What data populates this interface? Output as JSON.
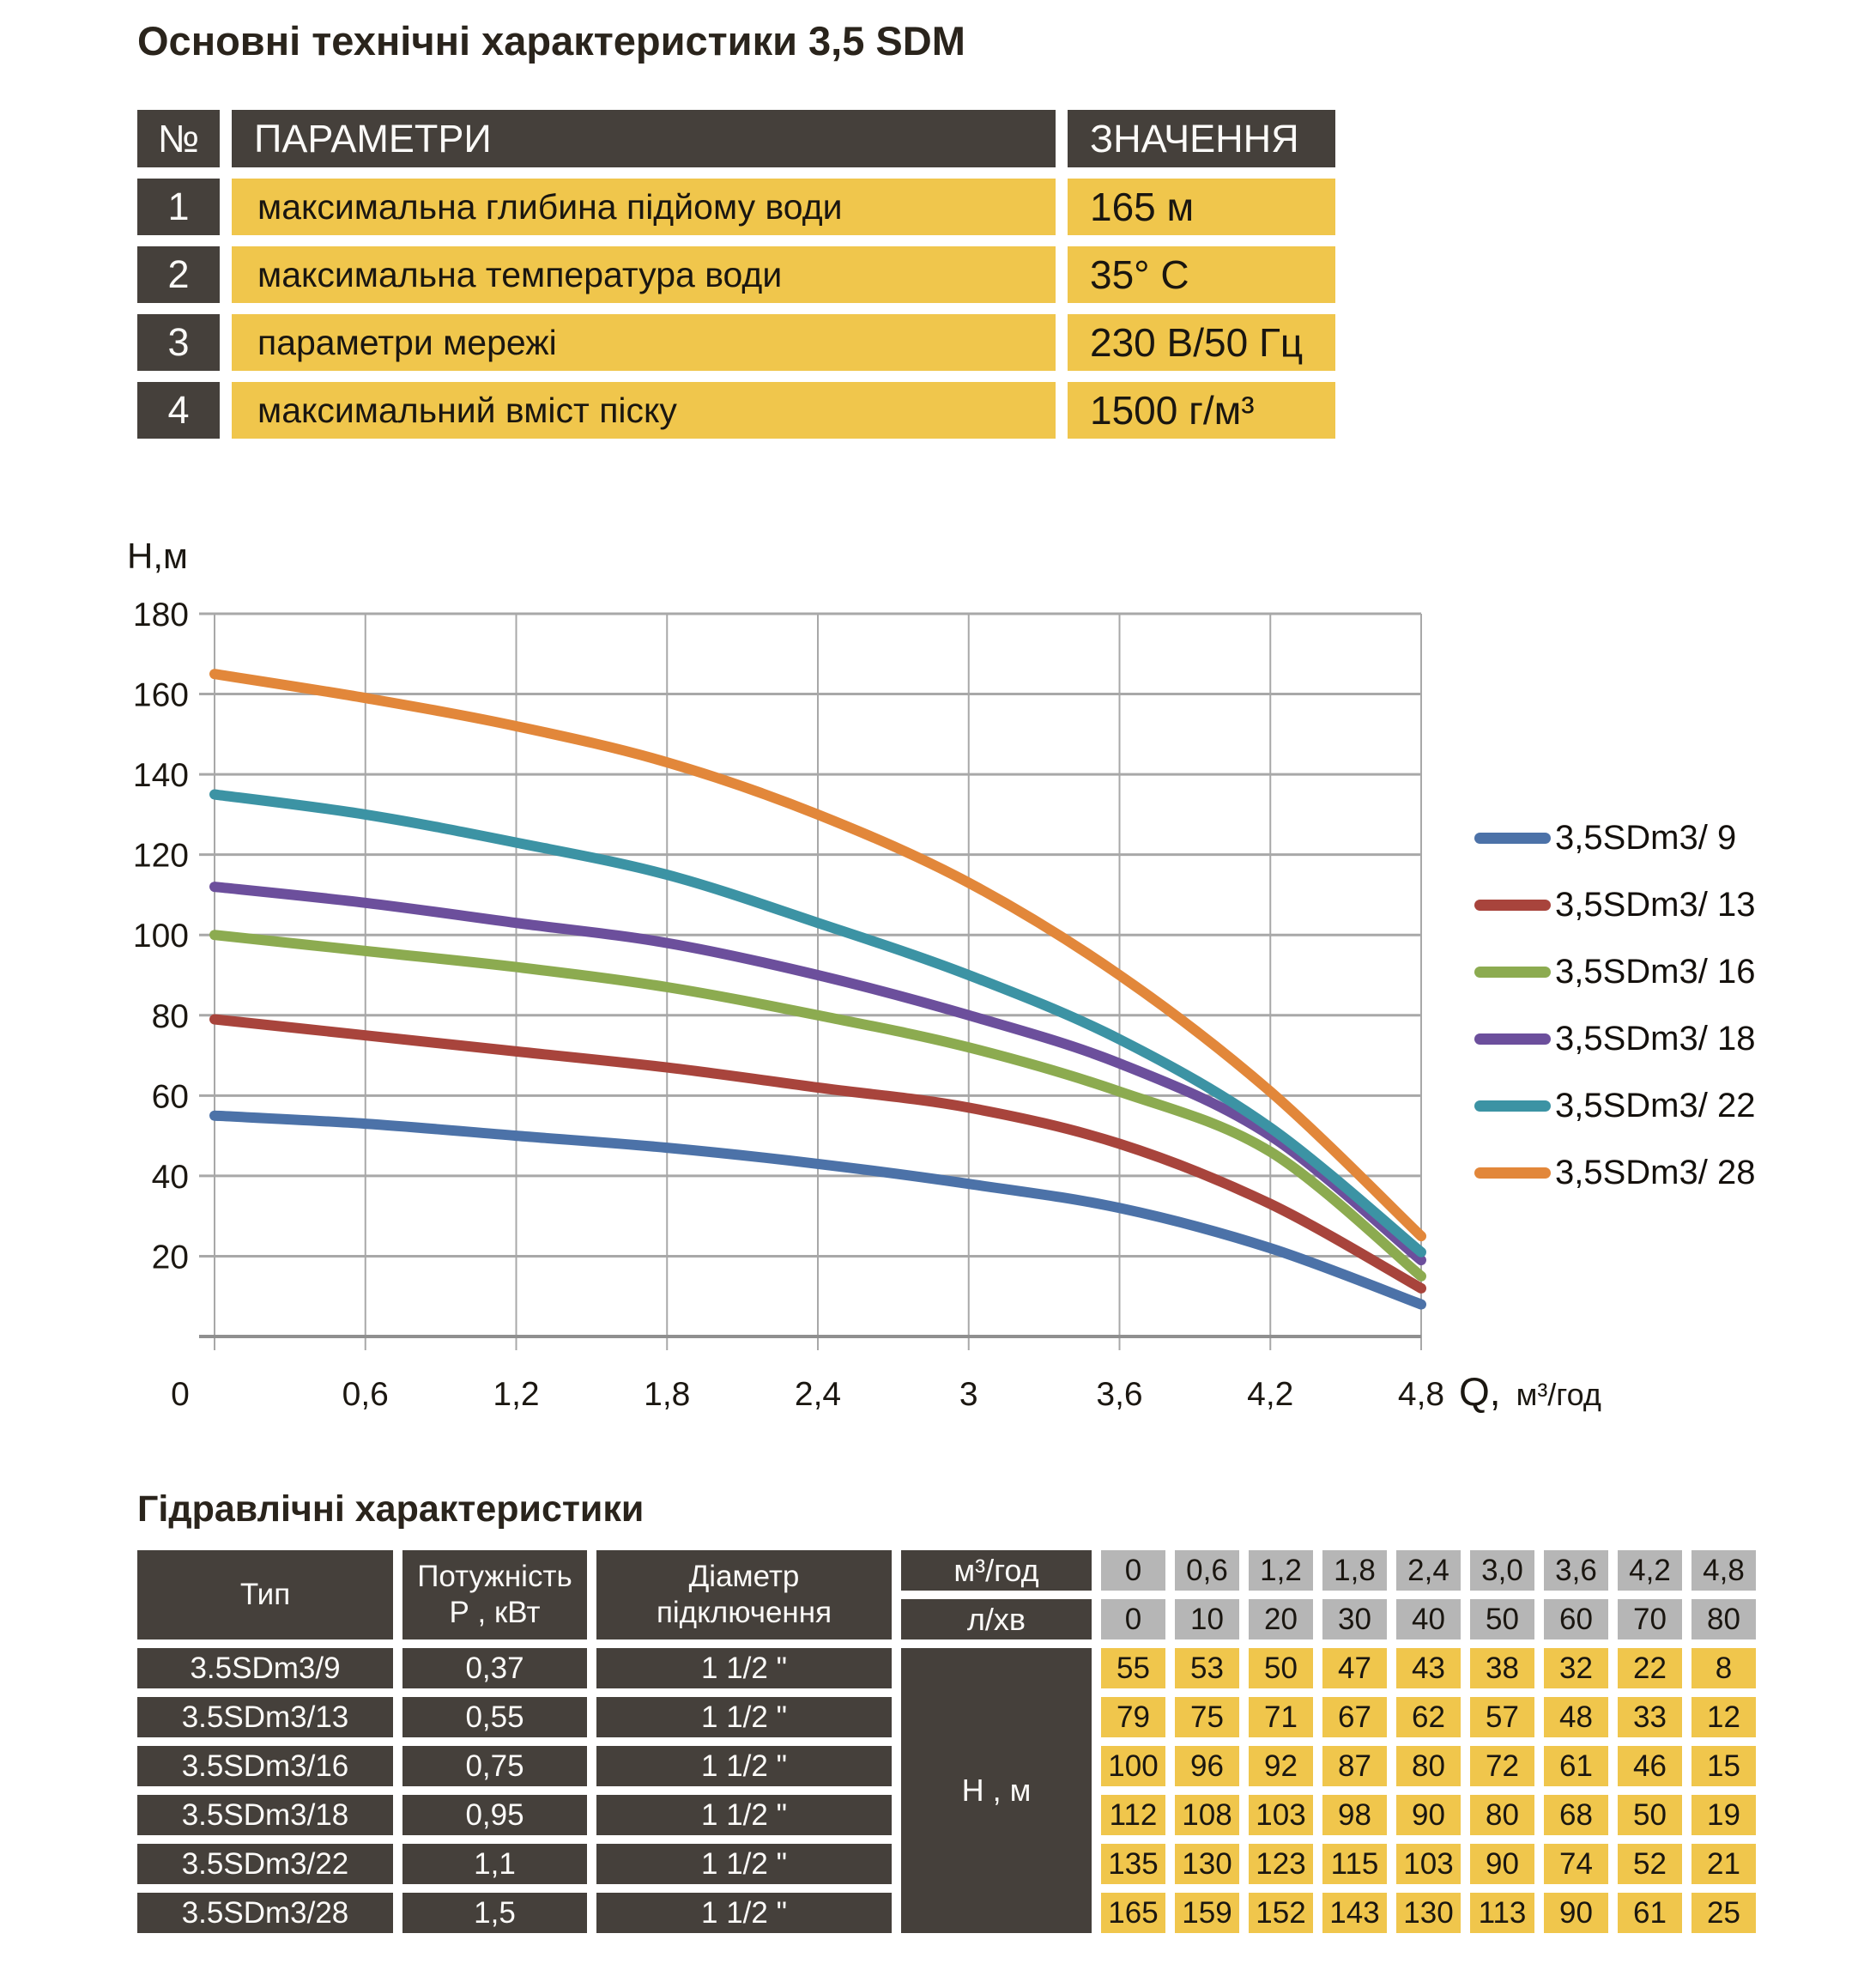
{
  "page": {
    "title": "Основні технічні характеристики 3,5 SDM",
    "section2_title": "Гідравлічні характеристики"
  },
  "colors": {
    "dark_cell": "#45403B",
    "yellow_cell": "#F0C64C",
    "grey_cell": "#B6B6B6",
    "grid": "#A8A8A8"
  },
  "params_table": {
    "headers": {
      "num": "№",
      "param": "ПАРАМЕТРИ",
      "value": "ЗНАЧЕННЯ"
    },
    "rows": [
      {
        "num": "1",
        "param": "максимальна глибина підйому води",
        "value": "165 м"
      },
      {
        "num": "2",
        "param": "максимальна температура води",
        "value": "35° С"
      },
      {
        "num": "3",
        "param": "параметри мережі",
        "value": "230 В/50 Гц"
      },
      {
        "num": "4",
        "param": "максимальний вміст піску",
        "value": "1500 г/м³"
      }
    ]
  },
  "chart_data": {
    "type": "line",
    "ylabel": "Н,м",
    "xlabel_main": "Q,",
    "xlabel_unit": "м³/год",
    "x": [
      0,
      0.6,
      1.2,
      1.8,
      2.4,
      3.0,
      3.6,
      4.2,
      4.8
    ],
    "x_tick_labels": [
      "0",
      "0,6",
      "1,2",
      "1,8",
      "2,4",
      "3",
      "3,6",
      "4,2",
      "4,8"
    ],
    "y_ticks": [
      180,
      160,
      140,
      120,
      100,
      80,
      60,
      40,
      20
    ],
    "y_tick_labels": [
      "180",
      "160",
      "140",
      "120",
      "100",
      "80",
      "60",
      "40",
      "20"
    ],
    "ylim": [
      0,
      180
    ],
    "xlim": [
      0,
      4.8
    ],
    "grid": true,
    "legend_position": "right",
    "series": [
      {
        "name": "3,5SDm3/ 9",
        "color": "#4C72A8",
        "values": [
          55,
          53,
          50,
          47,
          43,
          38,
          32,
          22,
          8
        ]
      },
      {
        "name": "3,5SDm3/ 13",
        "color": "#A8443C",
        "values": [
          79,
          75,
          71,
          67,
          62,
          57,
          48,
          33,
          12
        ]
      },
      {
        "name": "3,5SDm3/ 16",
        "color": "#8CAB50",
        "values": [
          100,
          96,
          92,
          87,
          80,
          72,
          61,
          46,
          15
        ]
      },
      {
        "name": "3,5SDm3/ 18",
        "color": "#6C4F9C",
        "values": [
          112,
          108,
          103,
          98,
          90,
          80,
          68,
          50,
          19
        ]
      },
      {
        "name": "3,5SDm3/ 22",
        "color": "#3C93A4",
        "values": [
          135,
          130,
          123,
          115,
          103,
          90,
          74,
          52,
          21
        ]
      },
      {
        "name": "3,5SDm3/ 28",
        "color": "#E2873A",
        "values": [
          165,
          159,
          152,
          143,
          130,
          113,
          90,
          61,
          25
        ]
      }
    ]
  },
  "hydro_table": {
    "col_headers": {
      "type": "Тип",
      "power_line1": "Потужність",
      "power_line2": "Р , кВт",
      "diameter_line1": "Діаметр",
      "diameter_line2": "підключення",
      "flow_unit": "м³/год",
      "lmin_unit": "л/хв",
      "head_unit": "Н , м"
    },
    "flow_values": [
      "0",
      "0,6",
      "1,2",
      "1,8",
      "2,4",
      "3,0",
      "3,6",
      "4,2",
      "4,8"
    ],
    "lmin_values": [
      "0",
      "10",
      "20",
      "30",
      "40",
      "50",
      "60",
      "70",
      "80"
    ],
    "rows": [
      {
        "type": "3.5SDm3/9",
        "power": "0,37",
        "diameter": "1 1/2 \"",
        "values": [
          "55",
          "53",
          "50",
          "47",
          "43",
          "38",
          "32",
          "22",
          "8"
        ]
      },
      {
        "type": "3.5SDm3/13",
        "power": "0,55",
        "diameter": "1 1/2 \"",
        "values": [
          "79",
          "75",
          "71",
          "67",
          "62",
          "57",
          "48",
          "33",
          "12"
        ]
      },
      {
        "type": "3.5SDm3/16",
        "power": "0,75",
        "diameter": "1 1/2 \"",
        "values": [
          "100",
          "96",
          "92",
          "87",
          "80",
          "72",
          "61",
          "46",
          "15"
        ]
      },
      {
        "type": "3.5SDm3/18",
        "power": "0,95",
        "diameter": "1 1/2 \"",
        "values": [
          "112",
          "108",
          "103",
          "98",
          "90",
          "80",
          "68",
          "50",
          "19"
        ]
      },
      {
        "type": "3.5SDm3/22",
        "power": "1,1",
        "diameter": "1 1/2 \"",
        "values": [
          "135",
          "130",
          "123",
          "115",
          "103",
          "90",
          "74",
          "52",
          "21"
        ]
      },
      {
        "type": "3.5SDm3/28",
        "power": "1,5",
        "diameter": "1 1/2 \"",
        "values": [
          "165",
          "159",
          "152",
          "143",
          "130",
          "113",
          "90",
          "61",
          "25"
        ]
      }
    ]
  }
}
